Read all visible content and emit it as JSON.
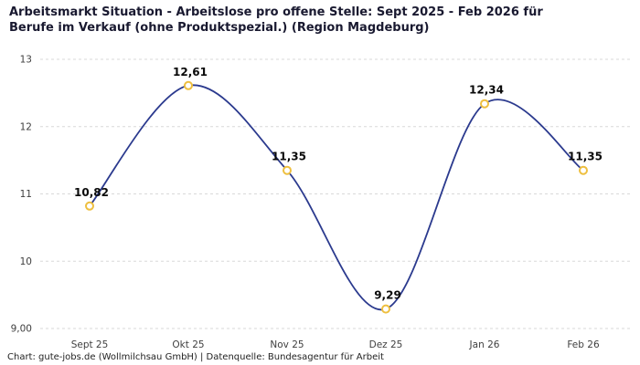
{
  "header": {
    "title_lines": [
      "Arbeitsmarkt Situation - Arbeitslose pro offene Stelle: Sept 2025 - Feb 2026 für",
      "Berufe im Verkauf (ohne Produktspezial.) (Region Magdeburg)"
    ]
  },
  "chart_data": {
    "type": "line",
    "title": "Arbeitsmarkt Situation - Arbeitslose pro offene Stelle: Sept 2025 - Feb 2026 für Berufe im Verkauf (ohne Produktspezial.) (Region Magdeburg)",
    "categories": [
      "Sept 25",
      "Okt 25",
      "Nov 25",
      "Dez 25",
      "Jan 26",
      "Feb 26"
    ],
    "values": [
      10.82,
      12.61,
      11.35,
      9.29,
      12.34,
      11.35
    ],
    "value_labels": [
      "10,82",
      "12,61",
      "11,35",
      "9,29",
      "12,34",
      "11,35"
    ],
    "xlabel": "",
    "ylabel": "",
    "ylim": [
      9,
      13
    ],
    "yticks": [
      9,
      10,
      11,
      12,
      13
    ],
    "ytick_labels": [
      "9,00",
      "10",
      "11",
      "12",
      "13"
    ],
    "grid": "horizontal-dashed",
    "legend": "none",
    "smooth": true,
    "line_color": "#2b3a8e",
    "marker_color": "#eebf3f",
    "marker_fill": "#ffffff"
  },
  "footer": {
    "caption": "Chart: gute-jobs.de (Wollmilchsau GmbH) | Datenquelle: Bundesagentur für Arbeit"
  }
}
